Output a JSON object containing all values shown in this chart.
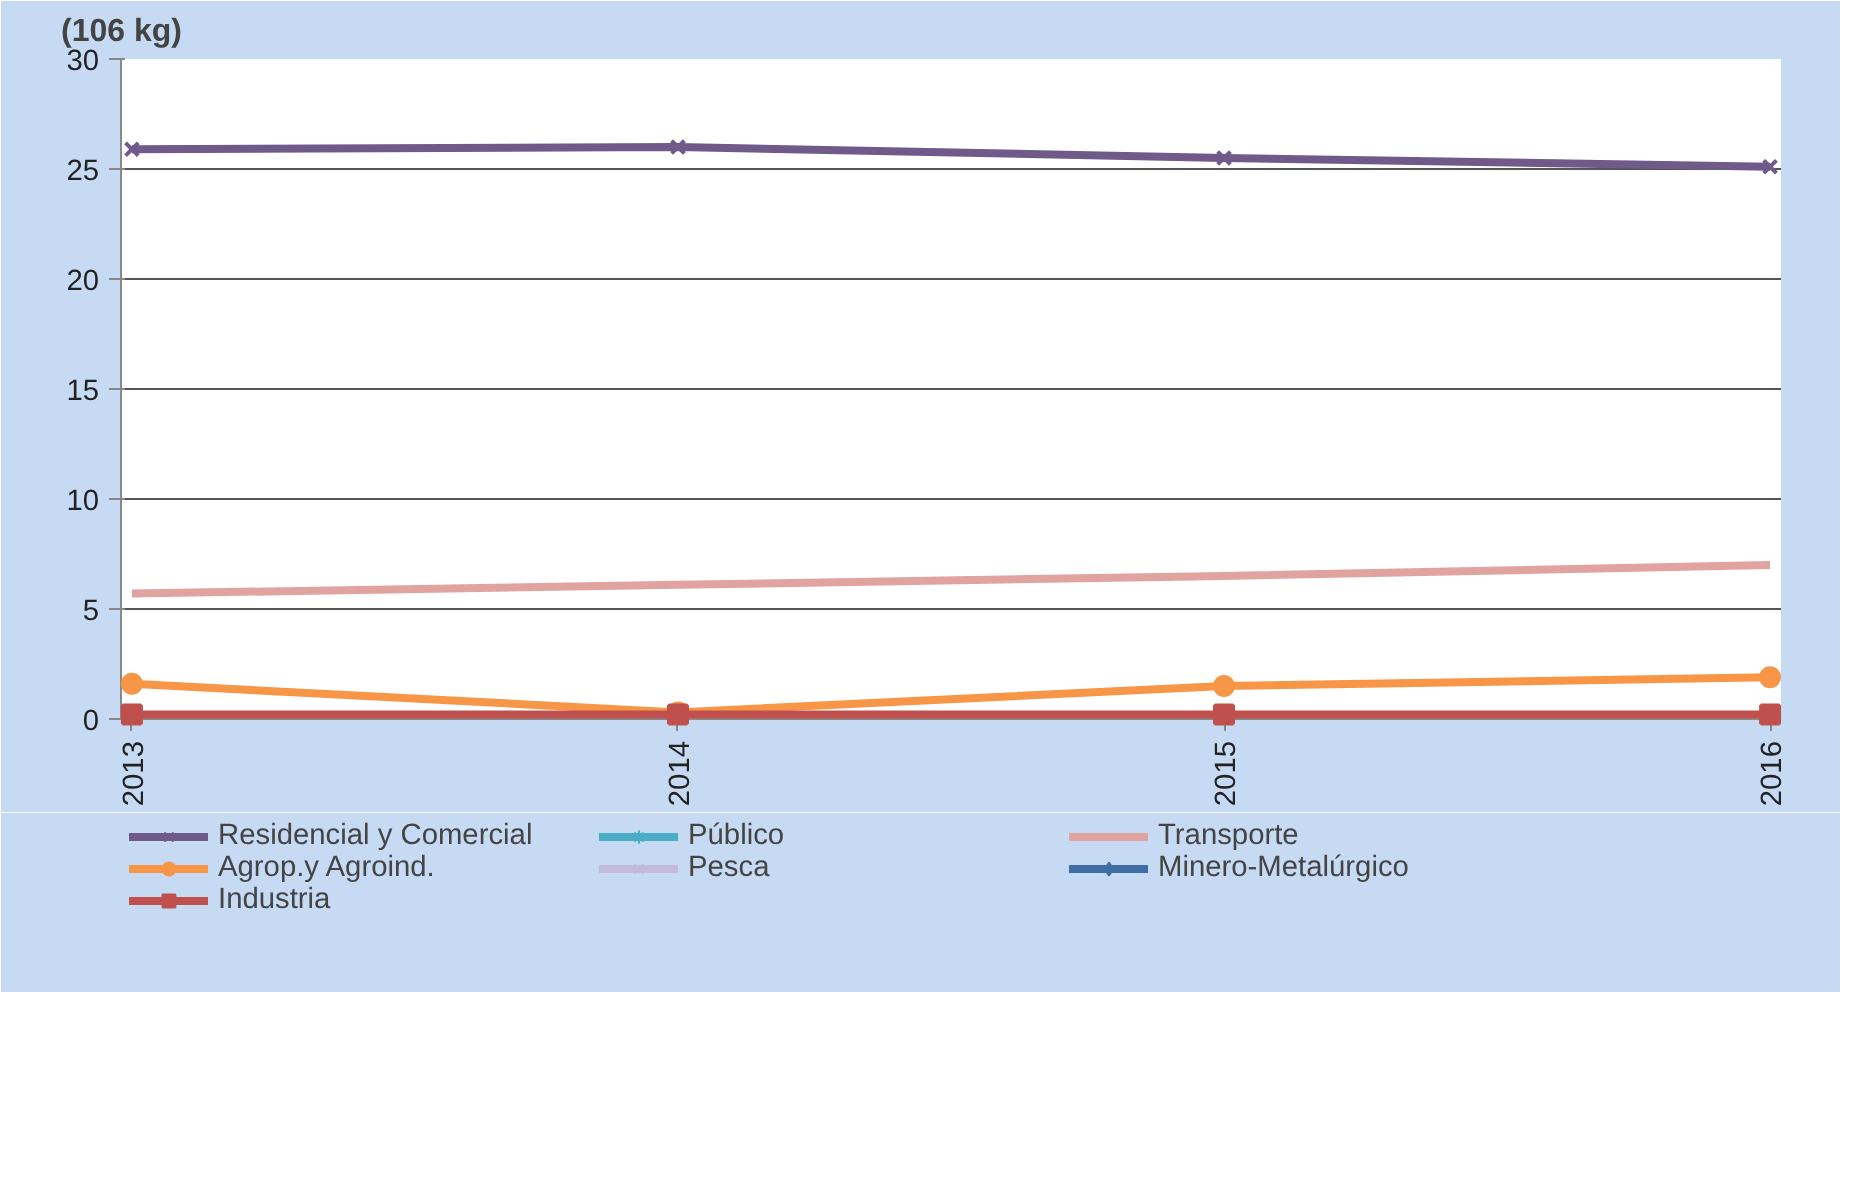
{
  "chart_data": {
    "type": "line",
    "ylabel": "(106 kg)",
    "categories": [
      "2013",
      "2014",
      "2015",
      "2016"
    ],
    "series": [
      {
        "name": "Residencial y Comercial",
        "color": "#6f5a8a",
        "marker": "cross",
        "values": [
          25.9,
          26.0,
          25.5,
          25.1
        ]
      },
      {
        "name": "Público",
        "color": "#4bacc6",
        "marker": "star",
        "values": [
          null,
          null,
          null,
          null
        ]
      },
      {
        "name": "Transporte",
        "color": "#e0a3a0",
        "marker": "none",
        "values": [
          5.7,
          6.1,
          6.5,
          7.0
        ]
      },
      {
        "name": "Agrop.y Agroind.",
        "color": "#f79646",
        "marker": "circle",
        "values": [
          1.6,
          0.3,
          1.5,
          1.9
        ]
      },
      {
        "name": "Pesca",
        "color": "#c3b9d8",
        "marker": "cross",
        "values": [
          null,
          null,
          null,
          null
        ]
      },
      {
        "name": "Minero-Metalúrgico",
        "color": "#3f6ea6",
        "marker": "diamond",
        "values": [
          null,
          null,
          null,
          null
        ]
      },
      {
        "name": "Industria",
        "color": "#c0504d",
        "marker": "square",
        "values": [
          0.2,
          0.2,
          0.2,
          0.2
        ]
      }
    ],
    "ylim": [
      0,
      30
    ],
    "yticks": [
      0,
      5,
      10,
      15,
      20,
      25,
      30
    ],
    "grid": "y",
    "legend": "bottom"
  }
}
